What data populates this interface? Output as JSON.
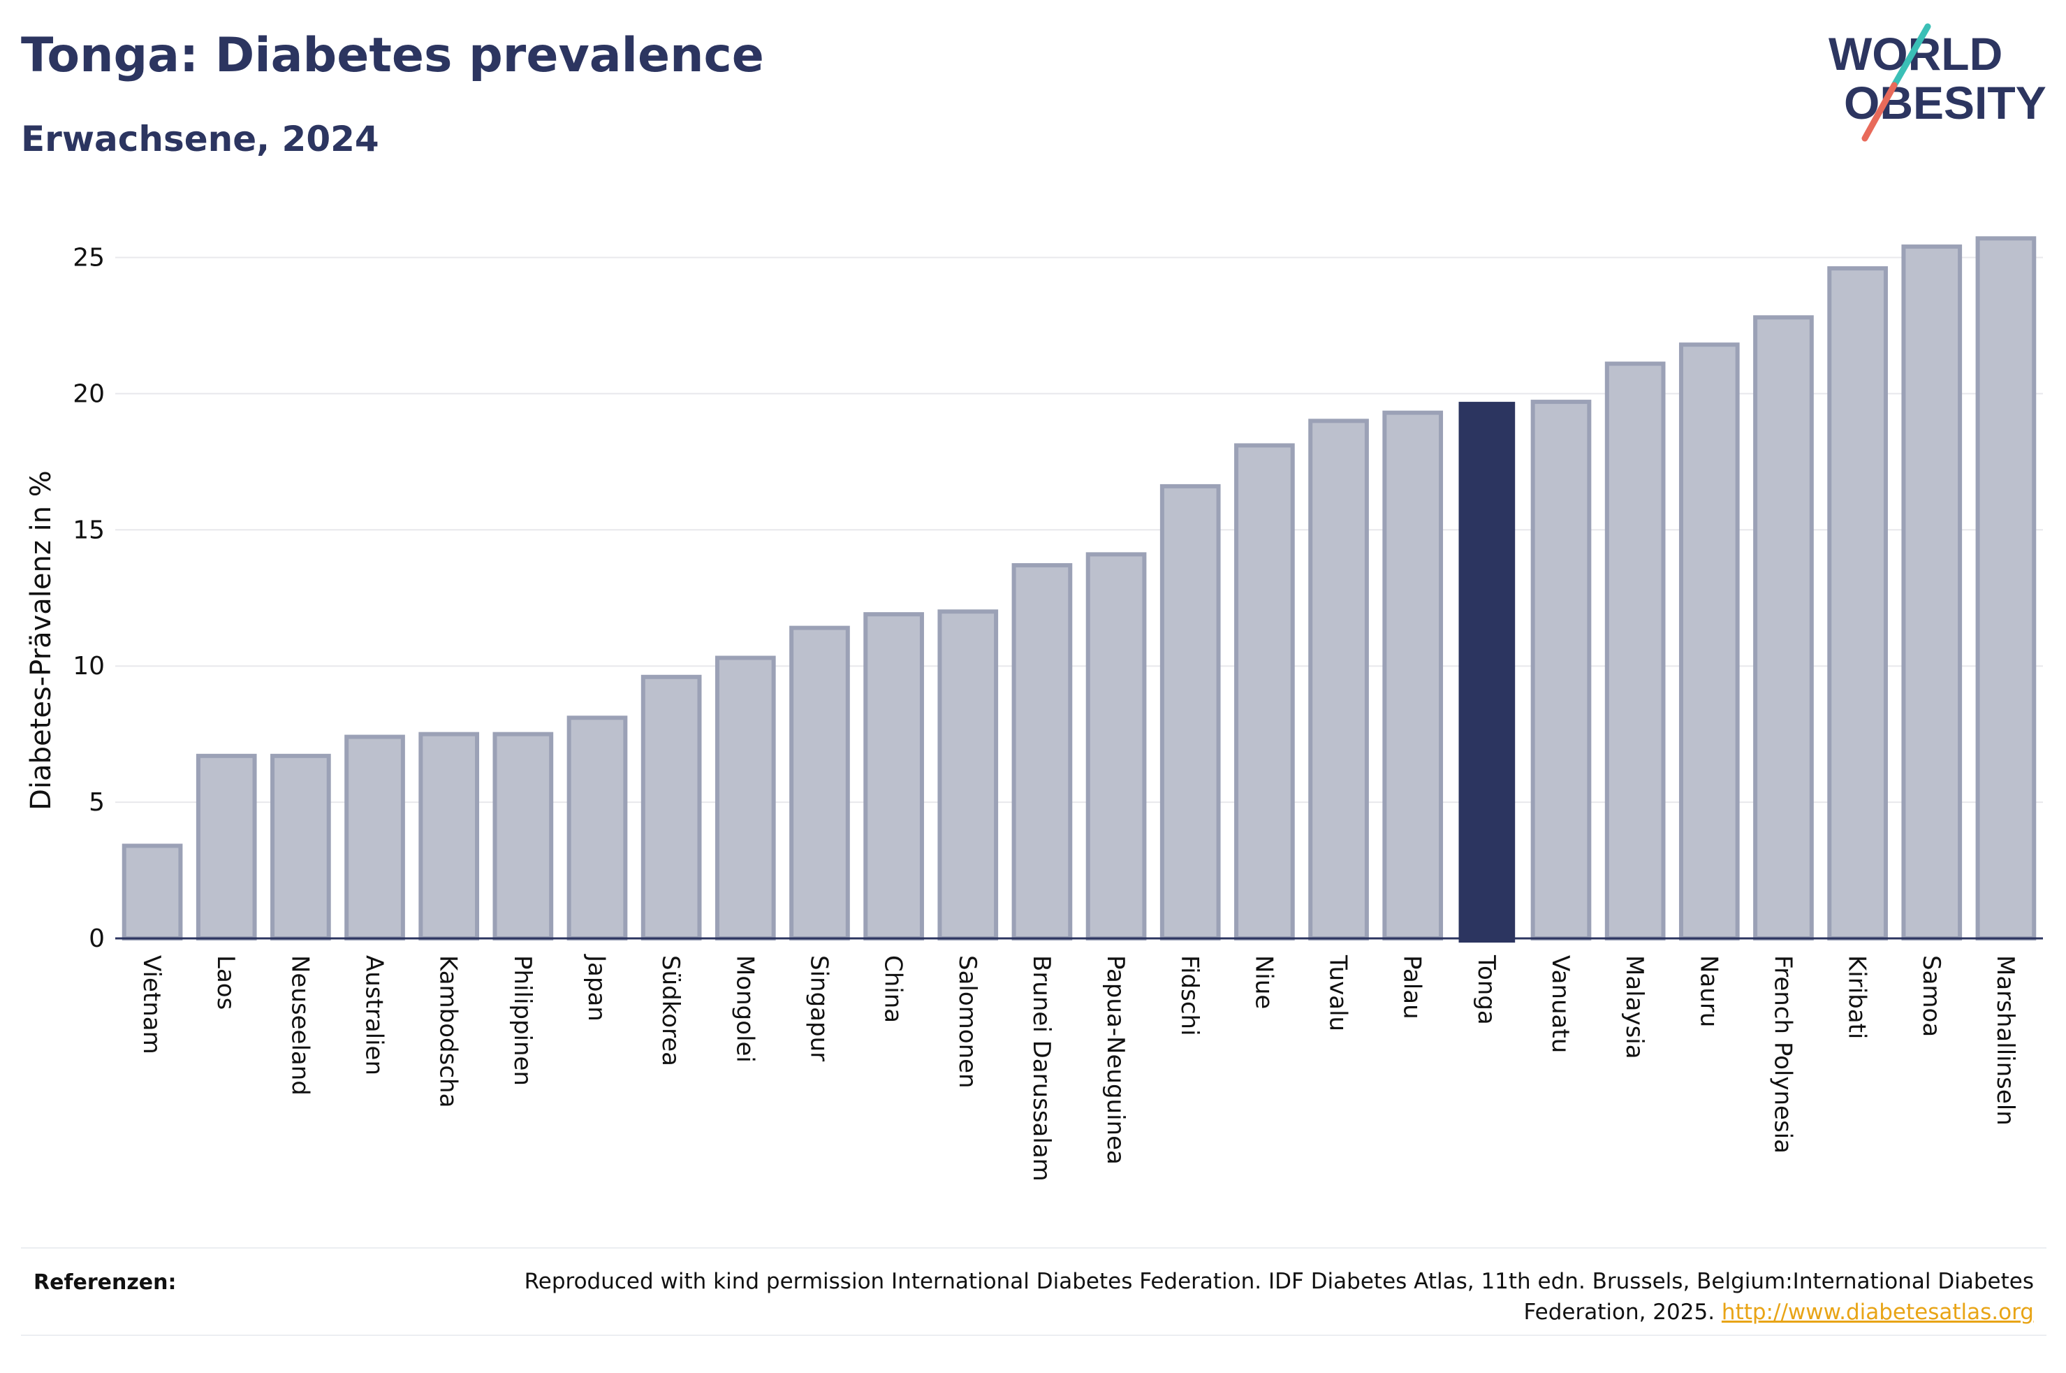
{
  "title": "Tonga: Diabetes prevalence",
  "subtitle": "Erwachsene, 2024",
  "logo": {
    "line1": "WORLD",
    "line2": "OBESITY",
    "colors": {
      "text": "#2c3560",
      "slash_top": "#3bbfb6",
      "slash_bottom": "#e86a5a"
    }
  },
  "references": {
    "label": "Referenzen:",
    "text": "Reproduced with kind permission International Diabetes Federation. IDF Diabetes Atlas, 11th edn. Brussels, Belgium:International Diabetes Federation, 2025.",
    "link": "http://www.diabetesatlas.org"
  },
  "chart_data": {
    "type": "bar",
    "title": "Tonga: Diabetes prevalence",
    "subtitle": "Erwachsene, 2024",
    "xlabel": "",
    "ylabel": "Diabetes-Prävalenz in %",
    "ylim": [
      0,
      26.5
    ],
    "yticks": [
      0,
      5,
      10,
      15,
      20,
      25
    ],
    "grid": true,
    "highlight": "Tonga",
    "colors": {
      "bar": "#bcc0cd",
      "bar_border": "#9ba1b6",
      "highlight": "#2c3560",
      "grid": "#e8e8ec",
      "axis": "#2c3560"
    },
    "categories": [
      "Vietnam",
      "Laos",
      "Neuseeland",
      "Australien",
      "Kambodscha",
      "Philippinen",
      "Japan",
      "Südkorea",
      "Mongolei",
      "Singapur",
      "China",
      "Salomonen",
      "Brunei Darussalam",
      "Papua-Neuguinea",
      "Fidschi",
      "Niue",
      "Tuvalu",
      "Palau",
      "Tonga",
      "Vanuatu",
      "Malaysia",
      "Nauru",
      "French Polynesia",
      "Kiribati",
      "Samoa",
      "Marshallinseln"
    ],
    "values": [
      3.4,
      6.7,
      6.7,
      7.4,
      7.5,
      7.5,
      8.1,
      9.6,
      10.3,
      11.4,
      11.9,
      12.0,
      13.7,
      14.1,
      16.6,
      18.1,
      19.0,
      19.3,
      19.7,
      19.7,
      21.1,
      21.8,
      22.8,
      24.6,
      25.4,
      25.7
    ]
  }
}
